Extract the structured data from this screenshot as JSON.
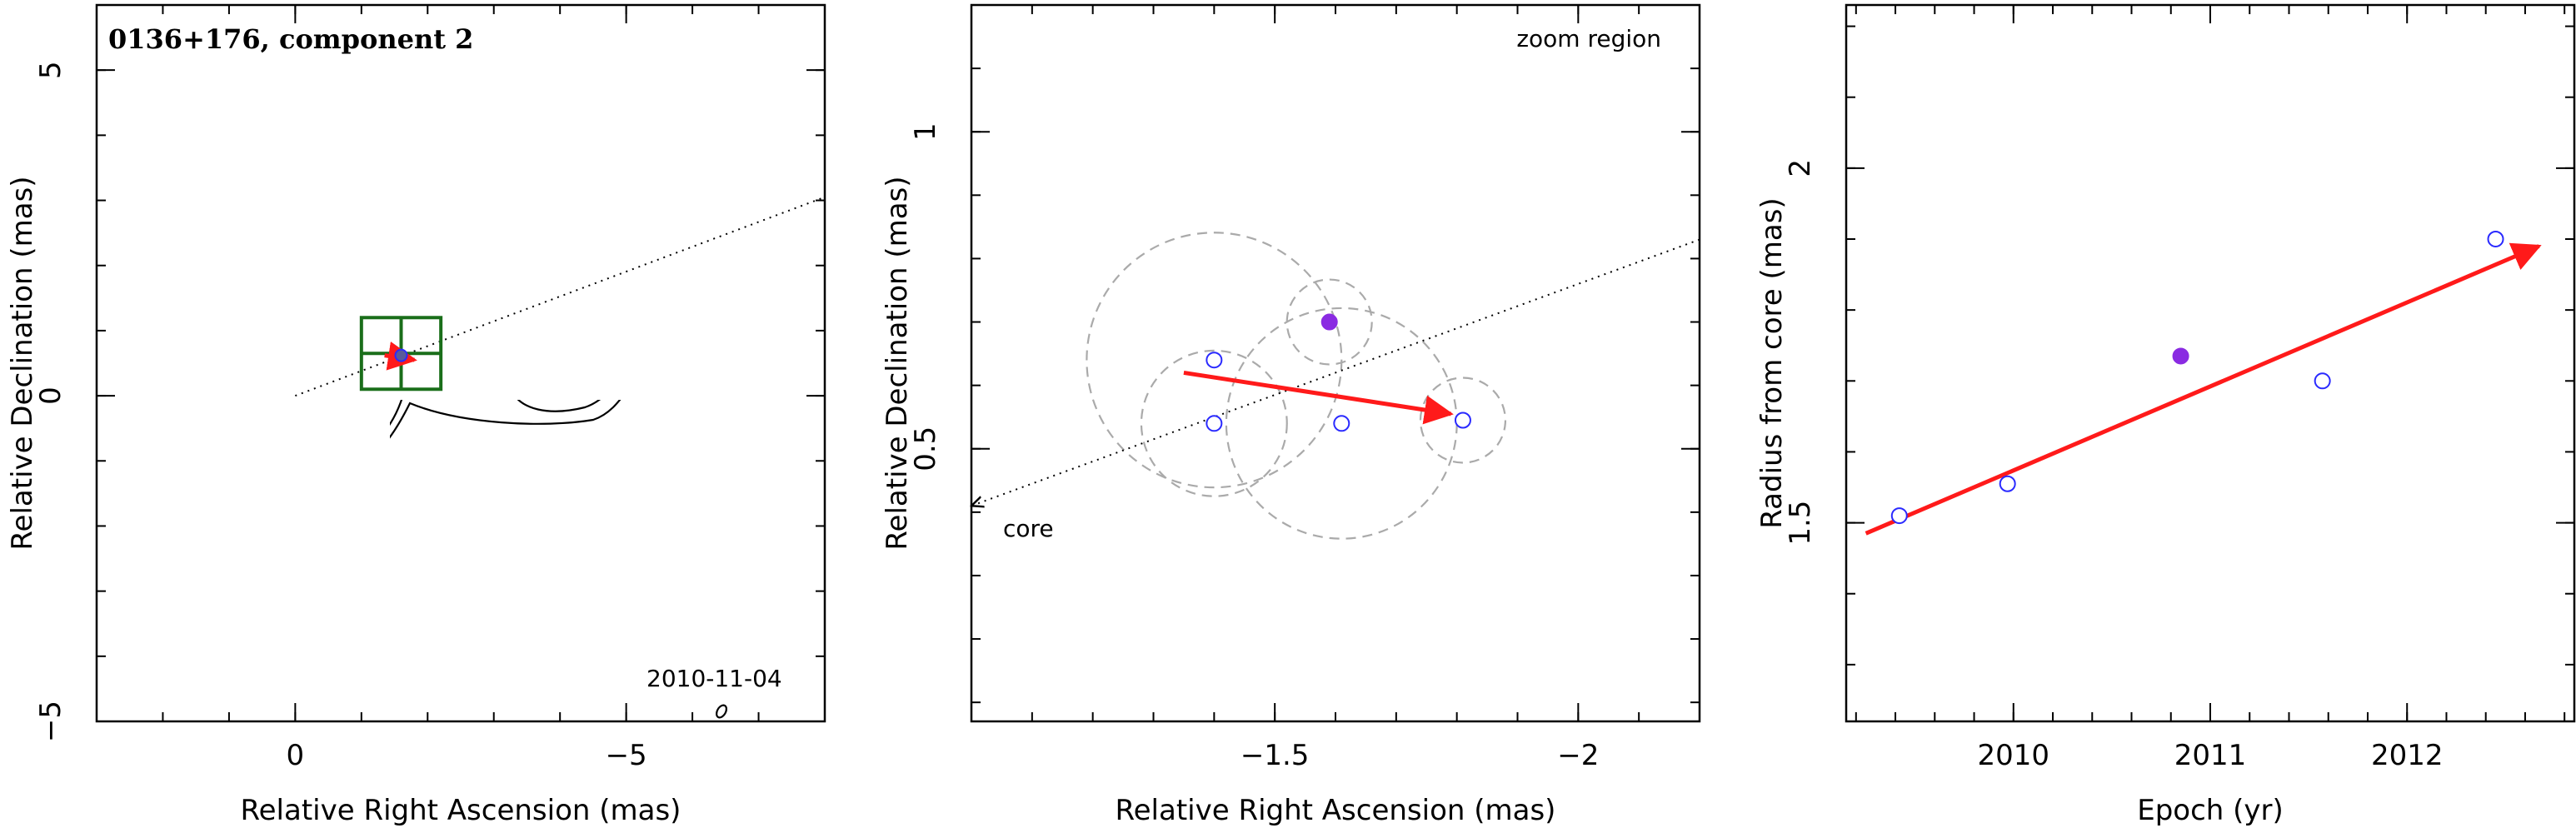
{
  "colors": {
    "axis": "#000000",
    "contour": "#000000",
    "box": "#1a6e1a",
    "arrow": "#ff1a1a",
    "open_marker": "#2a2aff",
    "filled_marker": "#8a2be2",
    "circles": "#aaaaaa"
  },
  "chart_data": [
    {
      "type": "contour",
      "title": "0136+176, component 2",
      "date_label": "2010-11-04",
      "xlabel": "Relative Right Ascension (mas)",
      "ylabel": "Relative Declination (mas)",
      "xlim": [
        3,
        -8
      ],
      "ylim": [
        -5,
        6
      ],
      "xticks": [
        0,
        -5
      ],
      "xtick_labels": [
        "0",
        "−5"
      ],
      "yticks": [
        -5,
        0,
        5
      ],
      "ytick_labels": [
        "−5",
        "0",
        "5"
      ],
      "component_box": {
        "x": [
          -1,
          -2.2
        ],
        "y": [
          0.1,
          1.2
        ]
      },
      "jet_direction": {
        "from": [
          0,
          0
        ],
        "to": [
          -8,
          3.05
        ]
      },
      "component_arrow": {
        "from": [
          -1.35,
          0.62
        ],
        "to": [
          -1.8,
          0.55
        ]
      },
      "core_position": [
        0,
        0
      ]
    },
    {
      "type": "scatter",
      "annotation_top": "zoom region",
      "annotation_core": "core",
      "xlabel": "Relative Right Ascension (mas)",
      "ylabel": "Relative Declination (mas)",
      "xlim": [
        -1.0,
        -2.2
      ],
      "ylim": [
        0.07,
        1.2
      ],
      "xticks": [
        -1.5,
        -2
      ],
      "xtick_labels": [
        "−1.5",
        "−2"
      ],
      "yticks": [
        0.5,
        1
      ],
      "ytick_labels": [
        "0.5",
        "1"
      ],
      "open_points": [
        {
          "x": -1.4,
          "y": 0.64
        },
        {
          "x": -1.4,
          "y": 0.54
        },
        {
          "x": -1.61,
          "y": 0.54
        },
        {
          "x": -1.81,
          "y": 0.545
        }
      ],
      "filled_points": [
        {
          "x": -1.59,
          "y": 0.7
        }
      ],
      "uncertainty_circles": [
        {
          "x": -1.4,
          "y": 0.64,
          "r": 0.21
        },
        {
          "x": -1.4,
          "y": 0.54,
          "r": 0.12
        },
        {
          "x": -1.61,
          "y": 0.54,
          "r": 0.19
        },
        {
          "x": -1.81,
          "y": 0.545,
          "r": 0.07
        },
        {
          "x": -1.59,
          "y": 0.7,
          "r": 0.07
        }
      ],
      "motion_arrow": {
        "from": [
          -1.35,
          0.62
        ],
        "to": [
          -1.79,
          0.555
        ]
      },
      "jet_line": {
        "from": [
          -2.2,
          0.83
        ],
        "to": [
          -1.0,
          0.41
        ]
      }
    },
    {
      "type": "scatter",
      "xlabel": "Epoch (yr)",
      "ylabel": "Radius from core (mas)",
      "xlim": [
        2009.15,
        2012.85
      ],
      "ylim": [
        1.22,
        2.23
      ],
      "xticks": [
        2010,
        2011,
        2012
      ],
      "xtick_labels": [
        "2010",
        "2011",
        "2012"
      ],
      "yticks": [
        1.5,
        2
      ],
      "ytick_labels": [
        "1.5",
        "2"
      ],
      "open_points": [
        {
          "x": 2009.42,
          "y": 1.51
        },
        {
          "x": 2009.97,
          "y": 1.555
        },
        {
          "x": 2011.57,
          "y": 1.7
        },
        {
          "x": 2012.45,
          "y": 1.9
        }
      ],
      "filled_points": [
        {
          "x": 2010.85,
          "y": 1.735
        }
      ],
      "fit_line": {
        "from": [
          2009.25,
          1.485
        ],
        "to": [
          2012.67,
          1.89
        ]
      }
    }
  ]
}
